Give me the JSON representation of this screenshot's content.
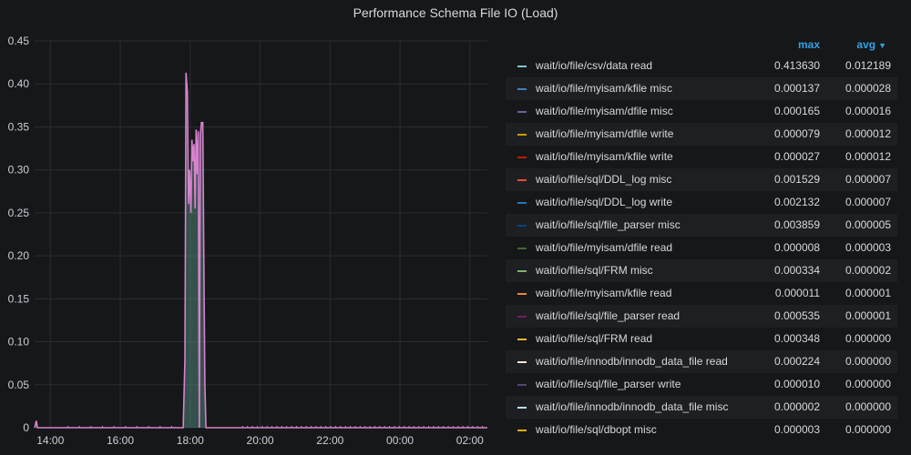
{
  "panel": {
    "title": "Performance Schema File IO (Load)"
  },
  "legend": {
    "max_label": "max",
    "avg_label": "avg"
  },
  "chart_data": {
    "type": "line",
    "title": "Performance Schema File IO (Load)",
    "x_ticks": [
      "14:00",
      "16:00",
      "18:00",
      "20:00",
      "22:00",
      "00:00",
      "02:00"
    ],
    "x_range_hours": [
      13.55,
      26.5
    ],
    "y_ticks": [
      "0",
      "0.05",
      "0.10",
      "0.15",
      "0.20",
      "0.25",
      "0.30",
      "0.35",
      "0.40",
      "0.45"
    ],
    "ylim": [
      0,
      0.45
    ],
    "grid": true,
    "legend_placement": "right",
    "main_series": {
      "name": "wait/io/file/csv/data read",
      "color": "#d683ce",
      "points": [
        [
          13.55,
          0.0
        ],
        [
          13.6,
          0.008
        ],
        [
          13.63,
          0.0
        ],
        [
          17.8,
          0.0
        ],
        [
          17.85,
          0.08
        ],
        [
          17.88,
          0.413
        ],
        [
          17.92,
          0.39
        ],
        [
          17.95,
          0.26
        ],
        [
          17.98,
          0.3
        ],
        [
          18.02,
          0.25
        ],
        [
          18.05,
          0.335
        ],
        [
          18.08,
          0.31
        ],
        [
          18.11,
          0.33
        ],
        [
          18.14,
          0.255
        ],
        [
          18.17,
          0.347
        ],
        [
          18.2,
          0.295
        ],
        [
          18.23,
          0.345
        ],
        [
          18.26,
          0.0
        ],
        [
          18.29,
          0.34
        ],
        [
          18.32,
          0.355
        ],
        [
          18.36,
          0.355
        ],
        [
          18.39,
          0.19
        ],
        [
          18.42,
          0.05
        ],
        [
          18.45,
          0.0
        ],
        [
          26.5,
          0.0
        ]
      ]
    },
    "series": [
      {
        "name": "wait/io/file/csv/data read",
        "color": "#86c4cf",
        "max": "0.413630",
        "avg": "0.012189"
      },
      {
        "name": "wait/io/file/myisam/kfile misc",
        "color": "#447ebc",
        "max": "0.000137",
        "avg": "0.000028"
      },
      {
        "name": "wait/io/file/myisam/dfile misc",
        "color": "#705da0",
        "max": "0.000165",
        "avg": "0.000016"
      },
      {
        "name": "wait/io/file/myisam/dfile write",
        "color": "#c4a000",
        "max": "0.000079",
        "avg": "0.000012"
      },
      {
        "name": "wait/io/file/myisam/kfile write",
        "color": "#bf1b00",
        "max": "0.000027",
        "avg": "0.000012"
      },
      {
        "name": "wait/io/file/sql/DDL_log misc",
        "color": "#e24d42",
        "max": "0.001529",
        "avg": "0.000007"
      },
      {
        "name": "wait/io/file/sql/DDL_log write",
        "color": "#1f78c1",
        "max": "0.002132",
        "avg": "0.000007"
      },
      {
        "name": "wait/io/file/sql/file_parser misc",
        "color": "#0a437c",
        "max": "0.003859",
        "avg": "0.000005"
      },
      {
        "name": "wait/io/file/myisam/dfile read",
        "color": "#3f6833",
        "max": "0.000008",
        "avg": "0.000003"
      },
      {
        "name": "wait/io/file/sql/FRM misc",
        "color": "#7eb26d",
        "max": "0.000334",
        "avg": "0.000002"
      },
      {
        "name": "wait/io/file/myisam/kfile read",
        "color": "#ef843c",
        "max": "0.000011",
        "avg": "0.000001"
      },
      {
        "name": "wait/io/file/sql/file_parser read",
        "color": "#6d1f62",
        "max": "0.000535",
        "avg": "0.000001"
      },
      {
        "name": "wait/io/file/sql/FRM read",
        "color": "#eab839",
        "max": "0.000348",
        "avg": "0.000000"
      },
      {
        "name": "wait/io/file/innodb/innodb_data_file read",
        "color": "#f9e2d2",
        "max": "0.000224",
        "avg": "0.000000"
      },
      {
        "name": "wait/io/file/sql/file_parser write",
        "color": "#584477",
        "max": "0.000010",
        "avg": "0.000000"
      },
      {
        "name": "wait/io/file/innodb/innodb_data_file misc",
        "color": "#badff4",
        "max": "0.000002",
        "avg": "0.000000"
      },
      {
        "name": "wait/io/file/sql/dbopt misc",
        "color": "#e5ac0e",
        "max": "0.000003",
        "avg": "0.000000"
      }
    ]
  }
}
